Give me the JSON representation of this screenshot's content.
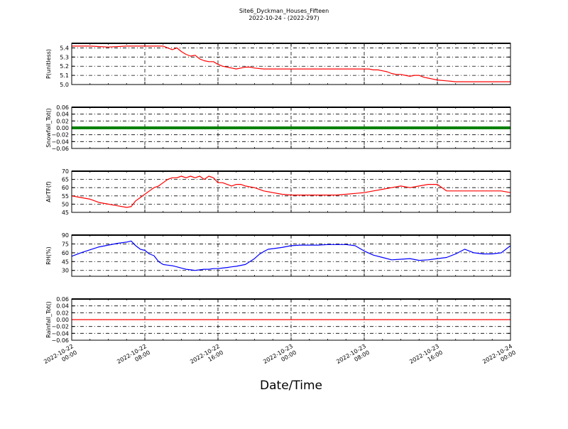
{
  "title": "Site6_Dyckman_Houses_Fifteen",
  "subtitle": "2022-10-24 - (2022-297)",
  "xlabel": "Date/Time",
  "x_ticks": [
    {
      "line1": "2022-10-22",
      "line2": "00:00"
    },
    {
      "line1": "2022-10-22",
      "line2": "08:00"
    },
    {
      "line1": "2022-10-22",
      "line2": "16:00"
    },
    {
      "line1": "2022-10-23",
      "line2": "00:00"
    },
    {
      "line1": "2022-10-23",
      "line2": "08:00"
    },
    {
      "line1": "2022-10-23",
      "line2": "16:00"
    },
    {
      "line1": "2022-10-24",
      "line2": "00:00"
    }
  ],
  "chart_data": [
    {
      "type": "line",
      "ylabel": "P(unitless)",
      "xlim": [
        0,
        48
      ],
      "ylim": [
        5.0,
        5.45
      ],
      "yticks": [
        "5.0",
        "5.1",
        "5.2",
        "5.3",
        "5.4"
      ],
      "grid": true,
      "color": "#ff0000",
      "series": [
        {
          "x": [
            0,
            2,
            4,
            6,
            8,
            10,
            10.5,
            11,
            11.5,
            12,
            12.5,
            13,
            13.5,
            14,
            14.5,
            15,
            15.5,
            16,
            16.5,
            17,
            17.5,
            18,
            18.5,
            19,
            19.5,
            20,
            21,
            22,
            23,
            24,
            26,
            28,
            30,
            32,
            32.5,
            33,
            33.5,
            34,
            34.5,
            35,
            35.5,
            36,
            36.5,
            37,
            37.5,
            38,
            38.5,
            39,
            39.5,
            40,
            41,
            42,
            44,
            46,
            48
          ],
          "y": [
            5.42,
            5.42,
            5.41,
            5.42,
            5.42,
            5.42,
            5.4,
            5.38,
            5.4,
            5.36,
            5.33,
            5.31,
            5.32,
            5.28,
            5.26,
            5.25,
            5.25,
            5.22,
            5.2,
            5.19,
            5.18,
            5.17,
            5.18,
            5.19,
            5.19,
            5.18,
            5.17,
            5.17,
            5.17,
            5.17,
            5.17,
            5.17,
            5.17,
            5.17,
            5.17,
            5.16,
            5.16,
            5.15,
            5.14,
            5.12,
            5.11,
            5.11,
            5.1,
            5.09,
            5.1,
            5.1,
            5.08,
            5.07,
            5.06,
            5.05,
            5.04,
            5.03,
            5.03,
            5.03,
            5.03
          ]
        }
      ]
    },
    {
      "type": "line",
      "ylabel": "Snowfall_Tot()",
      "xlim": [
        0,
        48
      ],
      "ylim": [
        -0.06,
        0.06
      ],
      "yticks": [
        "−0.06",
        "−0.04",
        "−0.02",
        "0.00",
        "0.02",
        "0.04",
        "0.06"
      ],
      "grid": true,
      "color": "#008000",
      "series": [
        {
          "x": [
            0,
            48
          ],
          "y": [
            0,
            0
          ]
        }
      ]
    },
    {
      "type": "line",
      "ylabel": "AirTF(f)",
      "xlim": [
        0,
        48
      ],
      "ylim": [
        45,
        70
      ],
      "yticks": [
        "45",
        "50",
        "55",
        "60",
        "65",
        "70"
      ],
      "grid": true,
      "color": "#ff0000",
      "series": [
        {
          "x": [
            0,
            1,
            2,
            3,
            4,
            5,
            6,
            6.5,
            7,
            7.5,
            8,
            8.5,
            9,
            9.5,
            10,
            10.5,
            11,
            11.5,
            12,
            12.5,
            13,
            13.5,
            14,
            14.5,
            15,
            15.5,
            16,
            16.5,
            17,
            17.5,
            18,
            18.5,
            19,
            20,
            21,
            22,
            23,
            24,
            25,
            26,
            27,
            28,
            29,
            30,
            31,
            32,
            33,
            34,
            35,
            36,
            37,
            38,
            39,
            40,
            41,
            42,
            43,
            44,
            45,
            46,
            47,
            48
          ],
          "y": [
            55,
            54,
            53,
            51,
            50,
            49,
            48,
            48.5,
            52,
            54,
            56,
            58,
            60,
            61,
            63,
            65,
            66,
            66,
            67,
            66,
            67,
            66,
            67,
            65,
            67,
            66,
            63,
            63,
            62,
            61,
            62,
            62,
            61,
            60,
            58,
            57,
            56,
            55.5,
            55.5,
            55.5,
            55.5,
            55.5,
            55.5,
            56,
            56.5,
            57,
            58,
            59,
            60,
            61,
            60,
            61,
            62,
            62,
            58,
            58,
            58,
            58,
            58,
            58,
            58,
            57
          ]
        }
      ]
    },
    {
      "type": "line",
      "ylabel": "RH(%)",
      "xlim": [
        0,
        48
      ],
      "ylim": [
        20,
        90
      ],
      "yticks": [
        "30",
        "45",
        "60",
        "75",
        "90"
      ],
      "grid": true,
      "color": "#0000ff",
      "series": [
        {
          "x": [
            0,
            1,
            2,
            3,
            4,
            5,
            6,
            6.5,
            7,
            7.5,
            8,
            8.5,
            9,
            9.5,
            10,
            10.5,
            11,
            11.5,
            12,
            12.5,
            13,
            13.5,
            14,
            14.5,
            15,
            15.5,
            16,
            16.5,
            17,
            17.5,
            18,
            19,
            20,
            20.5,
            21,
            21.5,
            22,
            23,
            24,
            25,
            26,
            27,
            28,
            29,
            30,
            31,
            32,
            33,
            34,
            35,
            36,
            37,
            38,
            39,
            40,
            41,
            42,
            43,
            44,
            45,
            46,
            47,
            48
          ],
          "y": [
            54,
            60,
            65,
            70,
            73,
            76,
            78,
            80,
            72,
            66,
            64,
            58,
            55,
            45,
            40,
            39,
            38,
            36,
            34,
            32,
            31,
            30,
            31,
            32,
            32,
            33,
            33,
            34,
            35,
            36,
            37,
            40,
            50,
            57,
            62,
            66,
            67,
            69,
            72,
            73,
            73,
            73,
            74,
            74,
            74,
            72,
            63,
            56,
            52,
            48,
            49,
            50,
            47,
            48,
            50,
            52,
            58,
            66,
            60,
            58,
            58,
            60,
            72
          ]
        }
      ]
    },
    {
      "type": "line",
      "ylabel": "Rainfall_Tot()",
      "xlim": [
        0,
        48
      ],
      "ylim": [
        -0.06,
        0.06
      ],
      "yticks": [
        "−0.06",
        "−0.04",
        "−0.02",
        "0.00",
        "0.02",
        "0.04",
        "0.06"
      ],
      "grid": true,
      "color": "#ff0000",
      "series": [
        {
          "x": [
            0,
            48
          ],
          "y": [
            0,
            0
          ]
        }
      ]
    }
  ]
}
